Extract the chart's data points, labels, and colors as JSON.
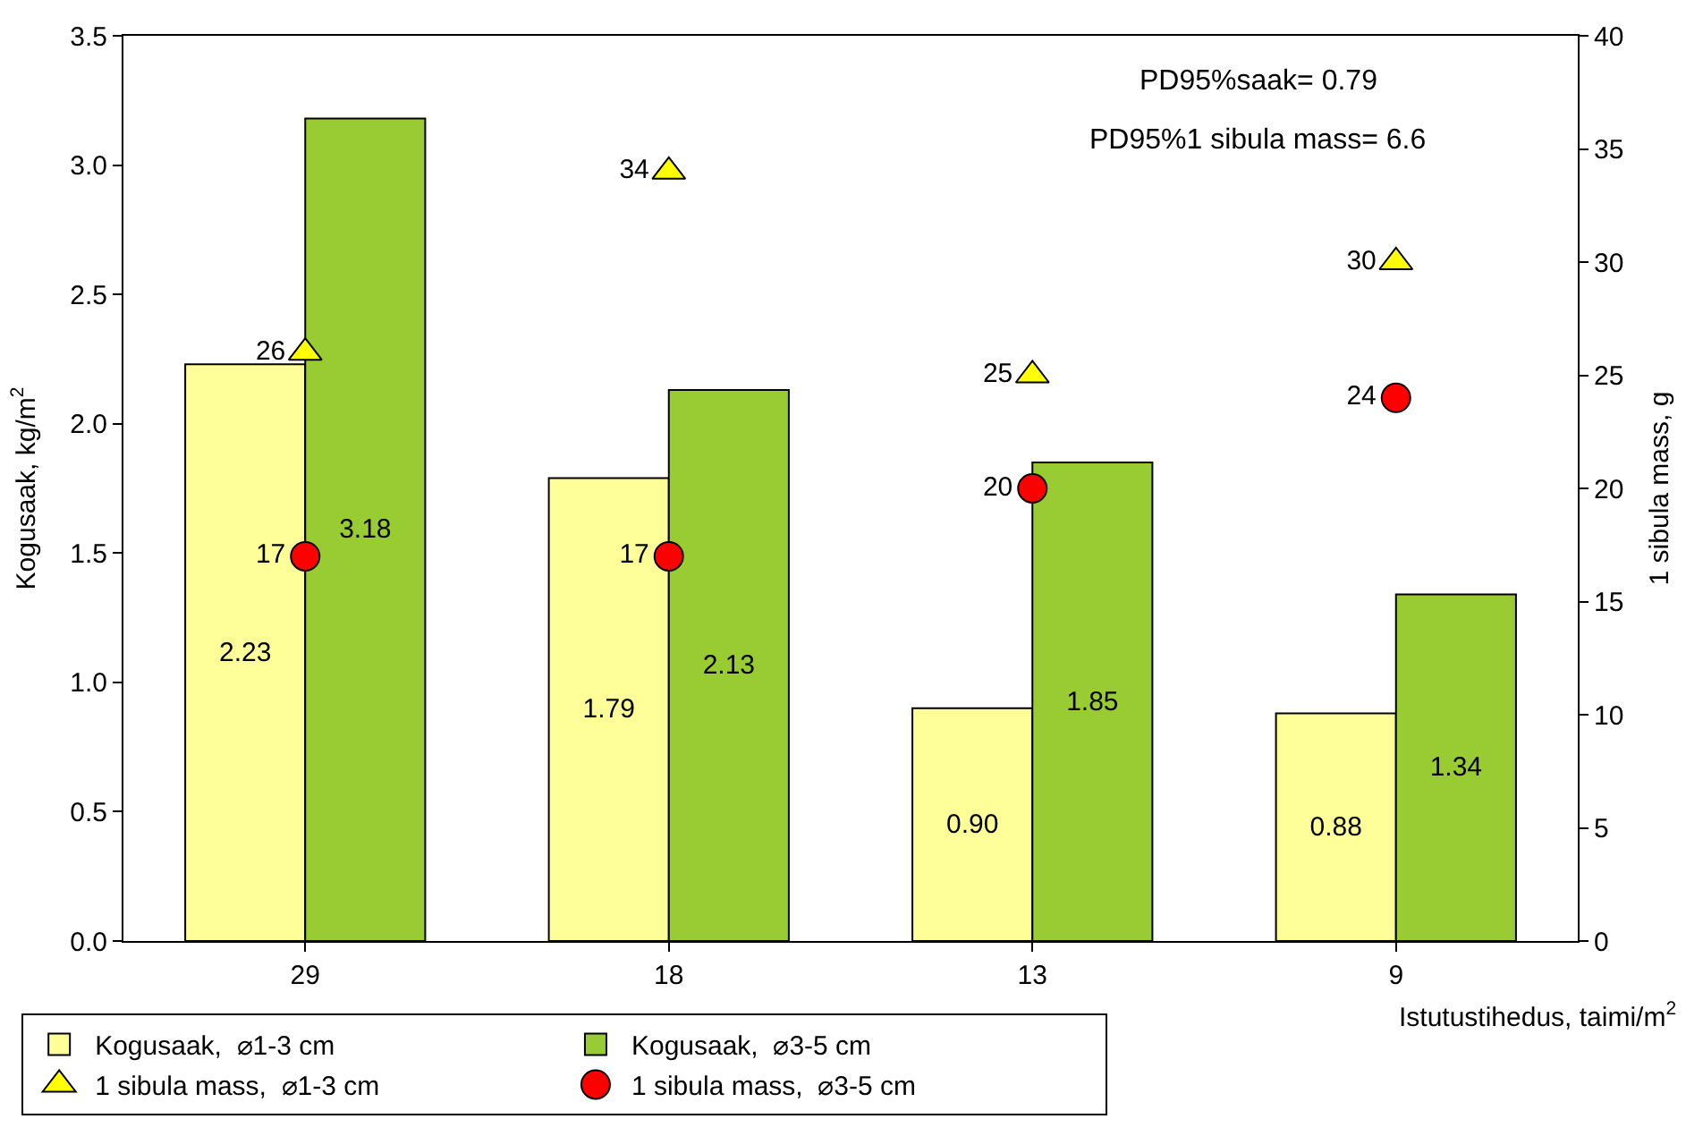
{
  "chart_data": {
    "type": "bar",
    "categories": [
      "29",
      "18",
      "13",
      "9"
    ],
    "xlabel": "Istutustihedus, taimi/m$^{2}$",
    "ylabel": "Kogusaak, kg/m$^{2}$",
    "y2label": "1 sibula mass, g",
    "ylim": [
      0,
      3.5
    ],
    "yticks": [
      {
        "value": 0,
        "label": "0.0"
      },
      0.5,
      {
        "value": 1,
        "label": "1.0"
      },
      1.5,
      {
        "value": 2,
        "label": "2.0"
      },
      2.5,
      {
        "value": 3,
        "label": "3.0"
      },
      3.5
    ],
    "y2lim": [
      0,
      40
    ],
    "y2ticks": [
      0,
      5,
      10,
      15,
      20,
      25,
      30,
      35,
      40
    ],
    "series": [
      {
        "name": "Kogusaak,  ⌀1-3 cm",
        "color": "#ffff99",
        "values": [
          2.23,
          1.79,
          0.9,
          0.88
        ],
        "value_labels": [
          "2.23",
          "1.79",
          "0.90",
          "0.88"
        ]
      },
      {
        "name": "Kogusaak,  ⌀3-5 cm",
        "color": "#99cc33",
        "values": [
          3.18,
          2.13,
          1.85,
          1.34
        ],
        "value_labels": [
          "3.18",
          "2.13",
          "1.85",
          "1.34"
        ]
      },
      {
        "name": "1 sibula mass,  ⌀1-3 cm",
        "type": "scatter",
        "axis": "y2",
        "marker": "triangle",
        "color": "#ffff00",
        "values": [
          26,
          34,
          25,
          30
        ]
      },
      {
        "name": "1 sibula mass,  ⌀3-5 cm",
        "type": "scatter",
        "axis": "y2",
        "marker": "circle",
        "color": "#ff0000",
        "values": [
          17,
          17,
          20,
          24
        ]
      }
    ],
    "data_labels": true,
    "annotations": [
      "PD95%saak= 0.79",
      "PD95%1 sibula mass= 6.6"
    ],
    "grid": false,
    "legend": "bottom left"
  }
}
